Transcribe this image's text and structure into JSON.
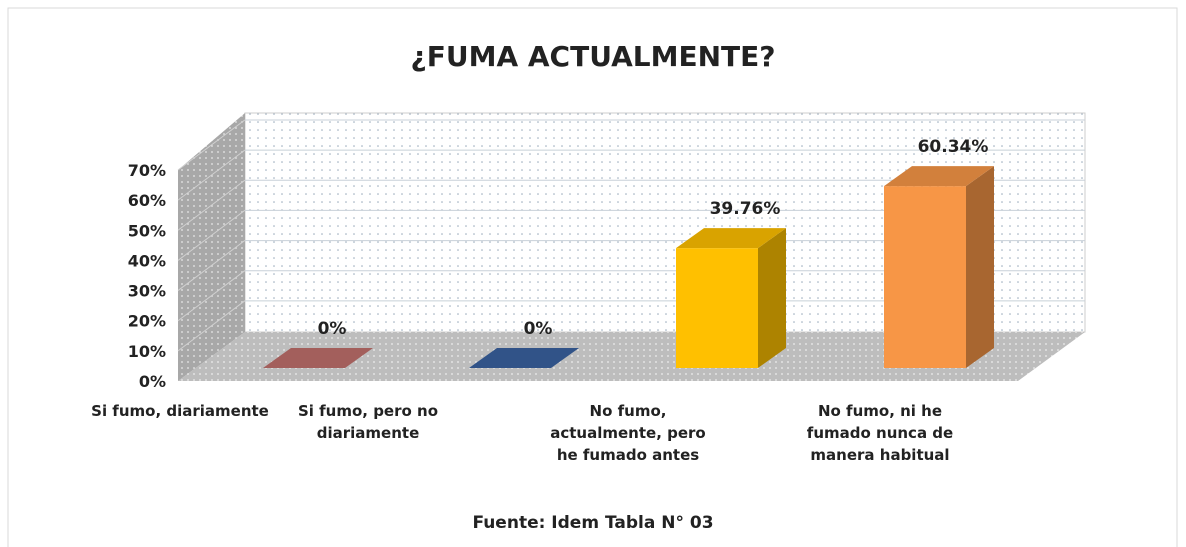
{
  "chart_data": {
    "type": "bar",
    "title": "¿FUMA ACTUALMENTE?",
    "categories": [
      "Si fumo, diariamente",
      "Si fumo, pero no diariamente",
      "No fumo, actualmente, pero he fumado antes",
      "No fumo, ni he fumado nunca de manera habitual"
    ],
    "values": [
      0,
      0,
      39.76,
      60.34
    ],
    "value_labels": [
      "0%",
      "0%",
      "39.76%",
      "60.34%"
    ],
    "colors": [
      "#c0706c",
      "#3a62a0",
      "#ffc000",
      "#f79646"
    ],
    "ylim": [
      0,
      70
    ],
    "yticks": [
      {
        "value": 0,
        "label": "0%"
      },
      {
        "value": 10,
        "label": "10%"
      },
      {
        "value": 20,
        "label": "20%"
      },
      {
        "value": 30,
        "label": "30%"
      },
      {
        "value": 40,
        "label": "40%"
      },
      {
        "value": 50,
        "label": "50%"
      },
      {
        "value": 60,
        "label": "60%"
      },
      {
        "value": 70,
        "label": "70%"
      }
    ],
    "grid": true,
    "note": "Fuente: Idem Tabla N° 03"
  }
}
